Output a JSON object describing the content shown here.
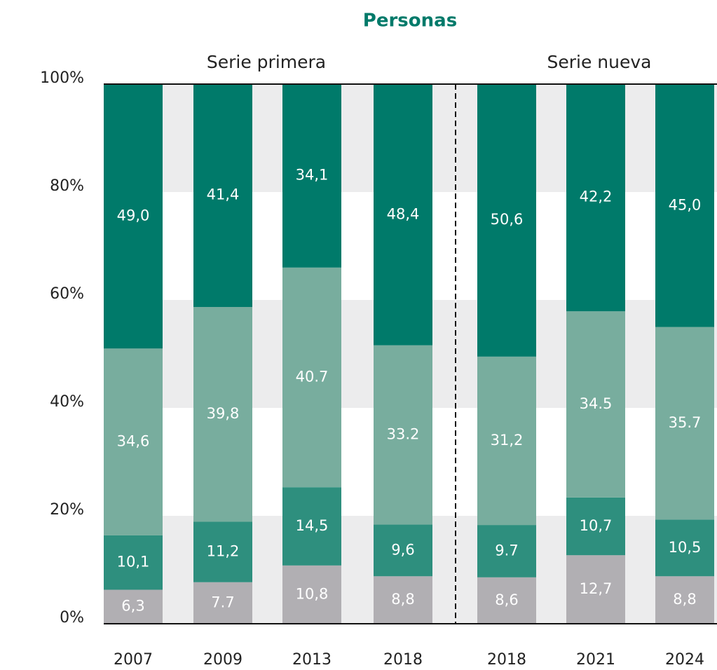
{
  "chart_data": {
    "type": "stacked_bar",
    "title": "Personas",
    "annotations": [
      "Serie primera",
      "Serie nueva"
    ],
    "categories": [
      "2007",
      "2009",
      "2013",
      "2018",
      "2018",
      "2021",
      "2024"
    ],
    "series": [
      {
        "color": "#b1afb3",
        "values": [
          6.3,
          7.7,
          10.8,
          8.8,
          8.6,
          12.7,
          8.8
        ],
        "value_labels": [
          "6,3",
          "7.7",
          "10,8",
          "8,8",
          "8,6",
          "12,7",
          "8,8"
        ]
      },
      {
        "color": "#2e8f7e",
        "values": [
          10.1,
          11.2,
          14.5,
          9.6,
          9.7,
          10.7,
          10.5
        ],
        "value_labels": [
          "10,1",
          "11,2",
          "14,5",
          "9,6",
          "9.7",
          "10,7",
          "10,5"
        ]
      },
      {
        "color": "#78ad9e",
        "values": [
          34.6,
          39.8,
          40.7,
          33.2,
          31.2,
          34.5,
          35.7
        ],
        "value_labels": [
          "34,6",
          "39,8",
          "40.7",
          "33.2",
          "31,2",
          "34.5",
          "35.7"
        ]
      },
      {
        "color": "#007a6a",
        "values": [
          49.0,
          41.4,
          34.1,
          48.4,
          50.6,
          42.2,
          45.0
        ],
        "value_labels": [
          "49,0",
          "41,4",
          "34,1",
          "48,4",
          "50,6",
          "42,2",
          "45,0"
        ]
      }
    ],
    "ylim": [
      0,
      100
    ],
    "yticks": [
      {
        "value": 0,
        "label": "0%"
      },
      {
        "value": 20,
        "label": "20%"
      },
      {
        "value": 40,
        "label": "40%"
      },
      {
        "value": 60,
        "label": "60%"
      },
      {
        "value": 80,
        "label": "80%"
      },
      {
        "value": 100,
        "label": "100%"
      }
    ],
    "grid": true
  }
}
